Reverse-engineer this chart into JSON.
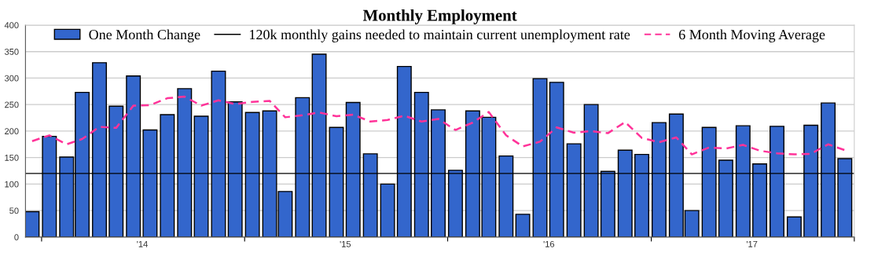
{
  "chart_data": {
    "type": "bar",
    "title": "Monthly Employment",
    "x": [
      "2013-12-15",
      "2014-01-15",
      "2014-02-15",
      "2014-03-15",
      "2014-04-15",
      "2014-05-15",
      "2014-06-15",
      "2014-07-15",
      "2014-08-15",
      "2014-09-15",
      "2014-10-15",
      "2014-11-15",
      "2014-12-15",
      "2015-01-15",
      "2015-02-15",
      "2015-03-15",
      "2015-04-15",
      "2015-05-15",
      "2015-06-15",
      "2015-07-15",
      "2015-08-15",
      "2015-09-15",
      "2015-10-15",
      "2015-11-15",
      "2015-12-15",
      "2016-01-15",
      "2016-02-15",
      "2016-03-15",
      "2016-04-15",
      "2016-05-15",
      "2016-06-15",
      "2016-07-15",
      "2016-08-15",
      "2016-09-15",
      "2016-10-15",
      "2016-11-15",
      "2016-12-15",
      "2017-01-15",
      "2017-02-15",
      "2017-03-15",
      "2017-04-15",
      "2017-05-15",
      "2017-06-15",
      "2017-07-15",
      "2017-08-15",
      "2017-09-15",
      "2017-10-15",
      "2017-11-15",
      "2017-12-15"
    ],
    "series": [
      {
        "name": "One Month Change",
        "color": "#3366cc",
        "values": [
          48,
          190,
          151,
          273,
          329,
          247,
          304,
          202,
          231,
          280,
          228,
          313,
          255,
          235,
          238,
          86,
          263,
          345,
          207,
          254,
          157,
          100,
          322,
          273,
          240,
          126,
          238,
          226,
          153,
          43,
          299,
          292,
          176,
          250,
          124,
          164,
          156,
          216,
          232,
          50,
          207,
          145,
          210,
          138,
          209,
          38,
          211,
          253,
          148
        ]
      },
      {
        "name": "6 Month Moving Average",
        "type": "line",
        "color": "#ff3399",
        "line_style": "dashed",
        "marker": "none",
        "values": [
          181,
          192,
          175,
          185,
          208,
          206,
          248,
          249,
          262,
          265,
          248,
          258,
          251,
          255,
          257,
          226,
          230,
          235,
          228,
          231,
          218,
          221,
          229,
          218,
          223,
          202,
          216,
          236,
          192,
          171,
          180,
          207,
          197,
          200,
          196,
          217,
          187,
          179,
          188,
          156,
          169,
          167,
          174,
          163,
          158,
          156,
          157,
          175,
          164
        ]
      }
    ],
    "ref_lines": [
      {
        "axis": "y",
        "value": 120,
        "label": "120k monthly gains needed to maintain current unemployment rate",
        "color": "#000000",
        "line_style": "solid"
      }
    ],
    "xlim": [
      "2013-12-03",
      "2018-01-01"
    ],
    "xticks": [
      {
        "value": "2014-01-01",
        "label": null
      },
      {
        "value": "2014-07-01",
        "label": "'14"
      },
      {
        "value": "2015-01-01",
        "label": null
      },
      {
        "value": "2015-07-01",
        "label": "'15"
      },
      {
        "value": "2016-01-01",
        "label": null
      },
      {
        "value": "2016-07-01",
        "label": "'16"
      },
      {
        "value": "2017-01-01",
        "label": null
      },
      {
        "value": "2017-07-01",
        "label": "'17"
      },
      {
        "value": "2018-01-01",
        "label": null
      }
    ],
    "ylim": [
      0,
      400
    ],
    "yticks": [
      0,
      50,
      100,
      150,
      200,
      250,
      300,
      350,
      400
    ],
    "grid": "y",
    "legend": "top"
  }
}
